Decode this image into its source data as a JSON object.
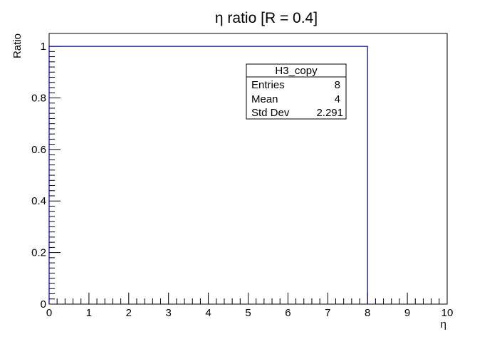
{
  "chart_data": {
    "type": "histogram",
    "title": "η ratio [R = 0.4]",
    "xlabel": "η",
    "ylabel": "Ratio",
    "xlim": [
      0,
      10
    ],
    "ylim": [
      0,
      1.05
    ],
    "x_ticks": [
      "0",
      "1",
      "2",
      "3",
      "4",
      "5",
      "6",
      "7",
      "8",
      "9",
      "10"
    ],
    "y_ticks": [
      "0",
      "0.2",
      "0.4",
      "0.6",
      "0.8",
      "1"
    ],
    "series": [
      {
        "color": "#000099",
        "bin_edges": [
          0,
          8
        ],
        "values": [
          1
        ]
      }
    ],
    "stats_box": {
      "name": "H3_copy",
      "rows": [
        {
          "label": "Entries",
          "value": "8"
        },
        {
          "label": "Mean",
          "value": "4"
        },
        {
          "label": "Std Dev",
          "value": "2.291"
        }
      ]
    }
  }
}
